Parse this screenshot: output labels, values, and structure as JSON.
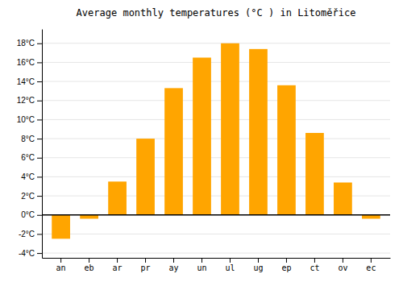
{
  "chart_data": {
    "type": "bar",
    "title": "Average monthly temperatures (°C ) in Litoměřice",
    "categories": [
      "an",
      "eb",
      "ar",
      "pr",
      "ay",
      "un",
      "ul",
      "ug",
      "ep",
      "ct",
      "ov",
      "ec"
    ],
    "values": [
      -2.5,
      -0.4,
      3.5,
      8.0,
      13.3,
      16.5,
      18.0,
      17.4,
      13.6,
      8.6,
      3.4,
      -0.4
    ],
    "color": "#FFA500",
    "ylim": [
      -4.5,
      19.5
    ],
    "yticks": [
      {
        "value": -4,
        "label": "-4°C"
      },
      {
        "value": -2,
        "label": "-2°C"
      },
      {
        "value": 0,
        "label": "0°C"
      },
      {
        "value": 2,
        "label": "2°C"
      },
      {
        "value": 4,
        "label": "4°C"
      },
      {
        "value": 6,
        "label": "6°C"
      },
      {
        "value": 8,
        "label": "8°C"
      },
      {
        "value": 10,
        "label": "10°C"
      },
      {
        "value": 12,
        "label": "12°C"
      },
      {
        "value": 14,
        "label": "14°C"
      },
      {
        "value": 16,
        "label": "16°C"
      },
      {
        "value": 18,
        "label": "18°C"
      }
    ],
    "grid": true
  }
}
